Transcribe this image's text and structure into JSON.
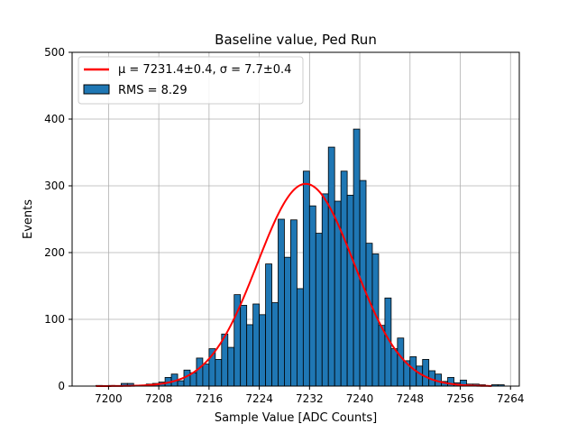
{
  "chart_data": {
    "type": "bar",
    "title": "Baseline value, Ped Run",
    "xlabel": "Sample Value [ADC Counts]",
    "ylabel": "Events",
    "xlim": [
      7194.2,
      7265.4
    ],
    "ylim": [
      0,
      500
    ],
    "xticks": [
      7200,
      7208,
      7216,
      7224,
      7232,
      7240,
      7248,
      7256,
      7264
    ],
    "yticks": [
      0,
      100,
      200,
      300,
      400,
      500
    ],
    "grid": true,
    "legend_position": "top-left",
    "legend": [
      {
        "label_prefix": "μ = 7231.4±0.4, ",
        "label_suffix": "σ = 7.7±0.4",
        "kind": "line",
        "color": "#ff0000"
      },
      {
        "label": "RMS = 8.29",
        "kind": "patch",
        "color": "#1f77b4"
      }
    ],
    "bin_width": 1,
    "bins_start": 7198,
    "counts": [
      1,
      0,
      1,
      0,
      4,
      4,
      0,
      0,
      3,
      4,
      6,
      13,
      18,
      8,
      24,
      20,
      42,
      33,
      56,
      40,
      78,
      58,
      137,
      121,
      92,
      123,
      107,
      183,
      125,
      250,
      193,
      249,
      146,
      322,
      270,
      229,
      288,
      358,
      277,
      322,
      286,
      385,
      308,
      214,
      198,
      91,
      132,
      56,
      72,
      38,
      44,
      30,
      40,
      23,
      18,
      7,
      13,
      5,
      9,
      3,
      3,
      2,
      0,
      2,
      2,
      0
    ]
  },
  "fit": {
    "mu": 7231.4,
    "sigma": 7.7,
    "amplitude": 303,
    "range": [
      7198,
      7261
    ],
    "color": "#ff0000"
  },
  "colors": {
    "bar_fill": "#1f77b4",
    "bar_edge": "#000000",
    "grid": "#b0b0b0"
  }
}
